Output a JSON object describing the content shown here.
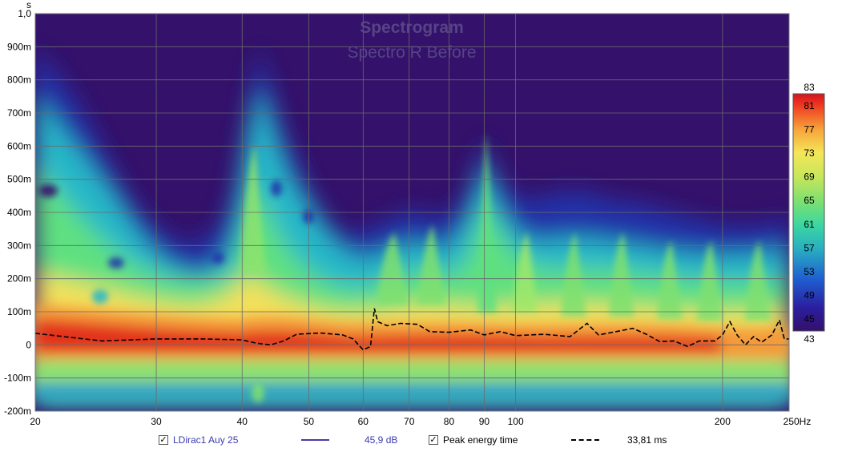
{
  "chart_data": {
    "type": "heatmap",
    "title": "Spectrogram",
    "subtitle": "Spectro R Before",
    "x_unit": "Hz",
    "y_unit": "s",
    "x_scale": "log",
    "xlim": [
      20,
      250
    ],
    "ylim": [
      -0.2,
      1.0
    ],
    "x_ticks": [
      {
        "value": 20,
        "label": "20"
      },
      {
        "value": 30,
        "label": "30"
      },
      {
        "value": 40,
        "label": "40"
      },
      {
        "value": 50,
        "label": "50"
      },
      {
        "value": 60,
        "label": "60"
      },
      {
        "value": 70,
        "label": "70"
      },
      {
        "value": 80,
        "label": "80"
      },
      {
        "value": 90,
        "label": "90"
      },
      {
        "value": 100,
        "label": "100"
      },
      {
        "value": 200,
        "label": "200"
      },
      {
        "value": 250,
        "label": "250Hz"
      }
    ],
    "y_ticks": [
      {
        "value": 1.0,
        "label": "1,0"
      },
      {
        "value": 0.9,
        "label": "900m"
      },
      {
        "value": 0.8,
        "label": "800m"
      },
      {
        "value": 0.7,
        "label": "700m"
      },
      {
        "value": 0.6,
        "label": "600m"
      },
      {
        "value": 0.5,
        "label": "500m"
      },
      {
        "value": 0.4,
        "label": "400m"
      },
      {
        "value": 0.3,
        "label": "300m"
      },
      {
        "value": 0.2,
        "label": "200m"
      },
      {
        "value": 0.1,
        "label": "100m"
      },
      {
        "value": 0.0,
        "label": "0"
      },
      {
        "value": -0.1,
        "label": "-100m"
      },
      {
        "value": -0.2,
        "label": "-200m"
      }
    ],
    "colorbar": {
      "min": 43,
      "max": 83,
      "labels": [
        "83",
        "81",
        "77",
        "73",
        "69",
        "65",
        "61",
        "57",
        "53",
        "49",
        "45",
        "43"
      ]
    },
    "grid": true,
    "series": [
      {
        "name": "Peak energy time",
        "style": "dashed",
        "color": "#000000",
        "points": [
          [
            20,
            0.035
          ],
          [
            22,
            0.025
          ],
          [
            25,
            0.012
          ],
          [
            30,
            0.018
          ],
          [
            35,
            0.018
          ],
          [
            40,
            0.015
          ],
          [
            42,
            0.005
          ],
          [
            44,
            0.0
          ],
          [
            46,
            0.012
          ],
          [
            48,
            0.032
          ],
          [
            52,
            0.036
          ],
          [
            56,
            0.03
          ],
          [
            58,
            0.018
          ],
          [
            60,
            -0.015
          ],
          [
            61.5,
            -0.005
          ],
          [
            62.3,
            0.11
          ],
          [
            63,
            0.07
          ],
          [
            65,
            0.058
          ],
          [
            68,
            0.065
          ],
          [
            72,
            0.062
          ],
          [
            75,
            0.04
          ],
          [
            80,
            0.038
          ],
          [
            86,
            0.045
          ],
          [
            90,
            0.03
          ],
          [
            95,
            0.04
          ],
          [
            100,
            0.028
          ],
          [
            110,
            0.032
          ],
          [
            120,
            0.025
          ],
          [
            127,
            0.065
          ],
          [
            132,
            0.03
          ],
          [
            140,
            0.04
          ],
          [
            148,
            0.05
          ],
          [
            155,
            0.032
          ],
          [
            162,
            0.01
          ],
          [
            170,
            0.012
          ],
          [
            178,
            -0.005
          ],
          [
            185,
            0.012
          ],
          [
            195,
            0.012
          ],
          [
            200,
            0.03
          ],
          [
            205,
            0.07
          ],
          [
            210,
            0.03
          ],
          [
            216,
            0.0
          ],
          [
            222,
            0.025
          ],
          [
            228,
            0.008
          ],
          [
            236,
            0.03
          ],
          [
            242,
            0.075
          ],
          [
            246,
            0.018
          ],
          [
            250,
            0.018
          ]
        ]
      }
    ],
    "legend": [
      {
        "name": "LDirac1 Auy 25",
        "checked": true,
        "line_color": "#4a3aa8",
        "value": "45,9 dB"
      },
      {
        "name": "Peak energy time",
        "checked": true,
        "line_style": "dashed",
        "value": "33,81 ms"
      }
    ]
  }
}
